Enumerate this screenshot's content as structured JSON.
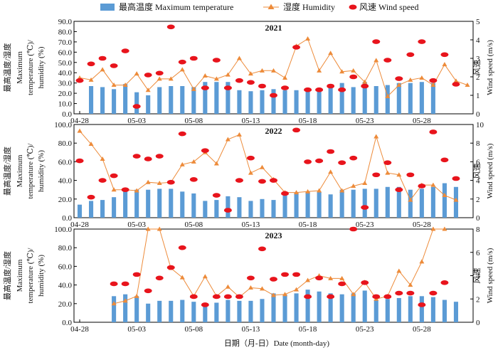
{
  "legend": {
    "bar_label": "最高温度 Maximum temperature",
    "line_label": "湿度 Humidity",
    "dot_label": "风速 Wind speed"
  },
  "colors": {
    "bar": "#5b9bd5",
    "line": "#ed8b3a",
    "dot": "#e8141c"
  },
  "xlabel": "日期（月-日）Date (month-day)",
  "chart_data": [
    {
      "type": "bar+line+scatter",
      "title": "2021",
      "ylabel_left": [
        "最高温度/湿度",
        "Maximum",
        "temperature (℃)/",
        "humidity (%)"
      ],
      "ylabel_right": [
        "风速",
        "Wind speed (m/s)"
      ],
      "y_left": {
        "min": 0,
        "max": 90,
        "step": 10,
        "ticks": [
          "0.0",
          "10.0",
          "20.0",
          "30.0",
          "40.0",
          "50.0",
          "60.0",
          "70.0",
          "80.0",
          "90.0"
        ]
      },
      "y_right": {
        "min": 0,
        "max": 5,
        "step": 1,
        "ticks": [
          "0",
          "1",
          "2",
          "3",
          "4",
          "5"
        ]
      },
      "x_ticks": [
        "04-28",
        "05-03",
        "05-08",
        "05-13",
        "05-18",
        "05-23",
        "05-28"
      ],
      "x_day_start": 0,
      "series": [
        {
          "name": "最高温度 Maximum temperature",
          "kind": "bar",
          "start_day": 1,
          "values": [
            27,
            26,
            24,
            29,
            21,
            18,
            26,
            27,
            27,
            26,
            31,
            31,
            31,
            23,
            22,
            23,
            24,
            23,
            23,
            23,
            23,
            28,
            30,
            26,
            31,
            27,
            28,
            30,
            30,
            31,
            30
          ]
        },
        {
          "name": "湿度 Humidity",
          "kind": "line",
          "start_day": 0,
          "values": [
            35,
            33,
            43,
            28,
            28,
            39,
            23,
            34,
            34,
            43,
            24,
            37,
            34,
            38,
            54,
            39,
            42,
            42,
            35,
            66,
            73,
            42,
            59,
            41,
            42,
            31,
            52,
            17,
            28,
            33,
            35,
            28,
            48,
            32,
            28
          ]
        },
        {
          "name": "风速 Wind speed",
          "kind": "scatter",
          "start_day": 0,
          "values": [
            1.8,
            2.7,
            3.0,
            2.6,
            3.4,
            0.4,
            2.1,
            2.2,
            4.7,
            2.8,
            3.0,
            1.4,
            2.9,
            1.4,
            1.8,
            1.7,
            1.5,
            1.0,
            1.4,
            3.6,
            1.3,
            1.3,
            1.5,
            1.3,
            2.0,
            1.5,
            3.9,
            2.9,
            1.9,
            3.2,
            3.9,
            1.8,
            3.2,
            1.6
          ]
        }
      ]
    },
    {
      "type": "bar+line+scatter",
      "title": "2022",
      "ylabel_left": [
        "最高温度/湿度",
        "Maximum",
        "temperature (℃)/",
        "humidity (%)"
      ],
      "ylabel_right": [
        "风速",
        "Wind speed (m/s)"
      ],
      "y_left": {
        "min": 0,
        "max": 100,
        "step": 20,
        "ticks": [
          "0.0",
          "20.0",
          "40.0",
          "60.0",
          "80.0",
          "100.0"
        ]
      },
      "y_right": {
        "min": 0,
        "max": 10,
        "step": 2,
        "ticks": [
          "0",
          "2",
          "4",
          "6",
          "8",
          "10"
        ]
      },
      "x_ticks": [
        "04-28",
        "05-03",
        "05-08",
        "05-13",
        "05-18",
        "05-23",
        "05-28"
      ],
      "x_day_start": 0,
      "series": [
        {
          "name": "最高温度 Maximum temperature",
          "kind": "bar",
          "start_day": 0,
          "values": [
            14,
            18,
            19,
            22,
            29,
            30,
            30,
            31,
            31,
            28,
            26,
            18,
            19,
            23,
            22,
            18,
            20,
            19,
            24,
            27,
            28,
            28,
            25,
            30,
            30,
            31,
            31,
            33,
            33,
            30,
            31,
            33,
            37,
            33
          ]
        },
        {
          "name": "湿度 Humidity",
          "kind": "line",
          "start_day": 0,
          "values": [
            93,
            79,
            63,
            30,
            30,
            29,
            38,
            37,
            38,
            57,
            60,
            70,
            58,
            84,
            89,
            48,
            54,
            41,
            27,
            27,
            28,
            29,
            49,
            29,
            34,
            37,
            87,
            48,
            46,
            19,
            35,
            35,
            24,
            19
          ]
        },
        {
          "name": "风速 Wind speed",
          "kind": "scatter",
          "start_day": 0,
          "values": [
            6.1,
            2.2,
            4.0,
            4.5,
            3.0,
            6.6,
            6.3,
            6.6,
            3.8,
            9.0,
            4.1,
            7.2,
            2.4,
            0.8,
            4.0,
            6.4,
            3.9,
            4.0,
            2.6,
            9.4,
            6.0,
            6.1,
            7.1,
            5.9,
            6.4,
            1.1,
            4.6,
            5.9,
            3.0,
            4.6,
            3.4,
            9.2,
            6.2,
            4.2
          ]
        }
      ]
    },
    {
      "type": "bar+line+scatter",
      "title": "2023",
      "ylabel_left": [
        "最高温度/湿度",
        "Maximum",
        "temperature (℃)/",
        "humidity (%)"
      ],
      "ylabel_right": [
        "风速",
        "Wind speed (m/s)"
      ],
      "y_left": {
        "min": 0,
        "max": 100,
        "step": 20,
        "ticks": [
          "0.0",
          "20.0",
          "40.0",
          "60.0",
          "80.0",
          "100.0"
        ]
      },
      "y_right": {
        "min": 0,
        "max": 8,
        "step": 2,
        "ticks": [
          "0",
          "2",
          "4",
          "6",
          "8"
        ]
      },
      "x_ticks": [
        "04-28",
        "05-03",
        "05-08",
        "05-13",
        "05-18",
        "05-23",
        "05-28"
      ],
      "x_day_start": 0,
      "series": [
        {
          "name": "最高温度 Maximum temperature",
          "kind": "bar",
          "start_day": 3,
          "values": [
            28,
            30,
            28,
            20,
            23,
            23,
            24,
            22,
            20,
            21,
            24,
            23,
            23,
            25,
            31,
            30,
            31,
            35,
            33,
            31,
            30,
            31,
            34,
            24,
            25,
            26,
            28,
            28,
            27,
            24,
            22
          ]
        },
        {
          "name": "湿度 Humidity",
          "kind": "line",
          "start_day": 3,
          "values": [
            20,
            23,
            28,
            100,
            100,
            58,
            48,
            28,
            49,
            28,
            38,
            27,
            37,
            36,
            29,
            30,
            35,
            45,
            50,
            47,
            47,
            30,
            43,
            25,
            28,
            55,
            40,
            65,
            100,
            100
          ]
        },
        {
          "name": "风速 Wind speed",
          "kind": "scatter",
          "start_day": 3,
          "values": [
            3.3,
            3.3,
            4.1,
            2.7,
            3.8,
            4.7,
            6.4,
            2.2,
            1.5,
            2.2,
            2.2,
            2.2,
            3.8,
            6.3,
            3.7,
            4.1,
            4.1,
            2.2,
            3.8,
            2.2,
            3.3,
            8.0,
            3.4,
            2.2,
            2.2,
            2.5,
            2.5,
            1.5,
            2.5,
            3.4
          ]
        }
      ]
    }
  ]
}
